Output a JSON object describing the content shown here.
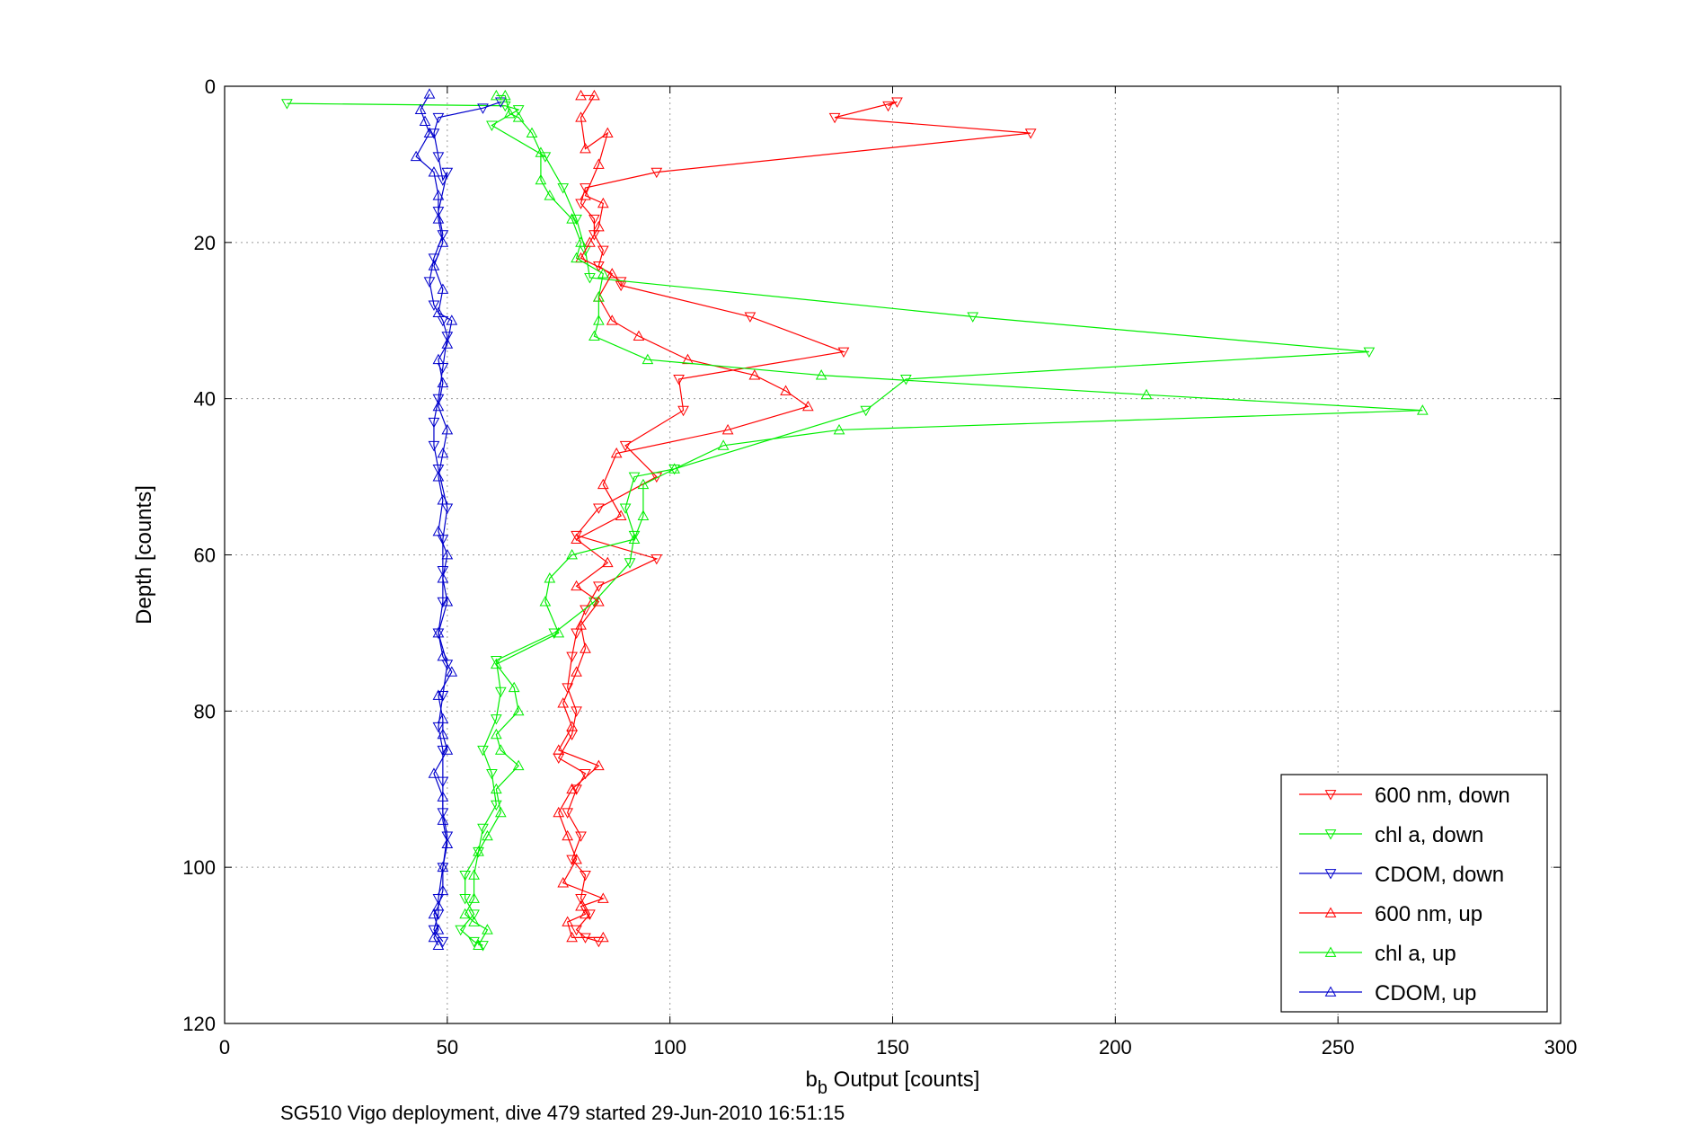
{
  "chart_data": {
    "type": "line",
    "title": "",
    "xlabel_main": "b",
    "xlabel_sub": "b",
    "xlabel_rest": " Output [counts]",
    "ylabel": "Depth [counts]",
    "caption": "SG510 Vigo deployment, dive 479 started 29-Jun-2010 16:51:15",
    "xlim": [
      0,
      300
    ],
    "ylim": [
      0,
      120
    ],
    "y_reversed": true,
    "grid": true,
    "legend_position": "bottom-right",
    "x_ticks": [
      "0",
      "50",
      "100",
      "150",
      "200",
      "250",
      "300"
    ],
    "y_ticks": [
      "0",
      "20",
      "40",
      "60",
      "80",
      "100",
      "120"
    ],
    "series": [
      {
        "name": "600 nm, down",
        "color": "#ff0000",
        "marker": "triangle-down",
        "points": [
          [
            149,
            2.5
          ],
          [
            151,
            2
          ],
          [
            137,
            4
          ],
          [
            181,
            6
          ],
          [
            97,
            11
          ],
          [
            81,
            13
          ],
          [
            80,
            15
          ],
          [
            83,
            17
          ],
          [
            83,
            19
          ],
          [
            85,
            21
          ],
          [
            84,
            23
          ],
          [
            89,
            25
          ],
          [
            89,
            25.5
          ],
          [
            118,
            29.5
          ],
          [
            139,
            34
          ],
          [
            102,
            37.5
          ],
          [
            103,
            41.5
          ],
          [
            90,
            46
          ],
          [
            97,
            50
          ],
          [
            84,
            54
          ],
          [
            79,
            57.5
          ],
          [
            97,
            60.5
          ],
          [
            84,
            64
          ],
          [
            81,
            67
          ],
          [
            79,
            70
          ],
          [
            78,
            73
          ],
          [
            77,
            77
          ],
          [
            79,
            80
          ],
          [
            78,
            83
          ],
          [
            75,
            86
          ],
          [
            81,
            88
          ],
          [
            79,
            90
          ],
          [
            77,
            93
          ],
          [
            80,
            96
          ],
          [
            78,
            99
          ],
          [
            81,
            101
          ],
          [
            80,
            104
          ],
          [
            82,
            106
          ],
          [
            79,
            108
          ],
          [
            81,
            109
          ],
          [
            84,
            109.5
          ]
        ]
      },
      {
        "name": "chl a, down",
        "color": "#00ee00",
        "marker": "triangle-down",
        "points": [
          [
            14,
            2.2
          ],
          [
            63,
            2.5
          ],
          [
            66,
            3
          ],
          [
            60,
            5
          ],
          [
            72,
            9
          ],
          [
            76,
            13
          ],
          [
            79,
            17
          ],
          [
            81,
            21
          ],
          [
            82,
            24.5
          ],
          [
            168,
            29.5
          ],
          [
            257,
            34
          ],
          [
            153,
            37.5
          ],
          [
            144,
            41.5
          ],
          [
            101,
            49
          ],
          [
            92,
            50
          ],
          [
            90,
            54
          ],
          [
            92,
            57.5
          ],
          [
            91,
            61
          ],
          [
            83,
            66
          ],
          [
            74,
            70
          ],
          [
            61,
            73.5
          ],
          [
            62,
            77.5
          ],
          [
            61,
            81
          ],
          [
            58,
            85
          ],
          [
            60,
            88
          ],
          [
            61,
            92
          ],
          [
            58,
            95
          ],
          [
            57,
            98
          ],
          [
            54,
            101
          ],
          [
            54,
            104
          ],
          [
            56,
            106
          ],
          [
            53,
            108
          ],
          [
            56,
            109.5
          ],
          [
            58,
            110
          ]
        ]
      },
      {
        "name": "CDOM, down",
        "color": "#0000cc",
        "marker": "triangle-down",
        "points": [
          [
            62,
            2
          ],
          [
            58,
            2.8
          ],
          [
            48,
            4
          ],
          [
            47,
            6
          ],
          [
            48,
            9
          ],
          [
            49,
            12
          ],
          [
            50,
            11
          ],
          [
            48,
            16
          ],
          [
            49,
            19
          ],
          [
            47,
            22
          ],
          [
            46,
            25
          ],
          [
            47,
            28
          ],
          [
            49,
            30
          ],
          [
            50,
            32
          ],
          [
            49,
            36
          ],
          [
            48,
            40
          ],
          [
            47,
            43
          ],
          [
            47,
            46
          ],
          [
            48,
            49
          ],
          [
            50,
            54
          ],
          [
            49,
            58
          ],
          [
            49,
            62
          ],
          [
            49,
            66
          ],
          [
            48,
            70
          ],
          [
            50,
            74
          ],
          [
            49,
            78
          ],
          [
            48,
            82
          ],
          [
            49,
            85
          ],
          [
            49,
            89
          ],
          [
            49,
            93
          ],
          [
            50,
            96
          ],
          [
            49,
            100
          ],
          [
            48,
            104
          ],
          [
            48,
            106
          ],
          [
            47,
            108
          ],
          [
            49,
            109.5
          ]
        ]
      },
      {
        "name": "600 nm, up",
        "color": "#ff0000",
        "marker": "triangle-up",
        "points": [
          [
            80,
            1.2
          ],
          [
            83,
            1.2
          ],
          [
            80,
            4
          ],
          [
            81,
            8
          ],
          [
            86,
            6
          ],
          [
            84,
            10
          ],
          [
            81,
            14
          ],
          [
            85,
            15
          ],
          [
            84,
            18
          ],
          [
            82,
            20
          ],
          [
            80,
            22
          ],
          [
            87,
            24
          ],
          [
            84,
            27
          ],
          [
            87,
            30
          ],
          [
            93,
            32
          ],
          [
            104,
            35
          ],
          [
            119,
            37
          ],
          [
            126,
            39
          ],
          [
            131,
            41
          ],
          [
            113,
            44
          ],
          [
            88,
            47
          ],
          [
            85,
            51
          ],
          [
            89,
            55
          ],
          [
            79,
            58
          ],
          [
            86,
            61
          ],
          [
            79,
            64
          ],
          [
            84,
            66
          ],
          [
            80,
            69
          ],
          [
            81,
            72
          ],
          [
            79,
            75
          ],
          [
            76,
            79
          ],
          [
            78,
            82
          ],
          [
            75,
            85
          ],
          [
            84,
            87
          ],
          [
            78,
            90
          ],
          [
            75,
            93
          ],
          [
            77,
            96
          ],
          [
            79,
            99
          ],
          [
            76,
            102
          ],
          [
            85,
            104
          ],
          [
            80,
            105
          ],
          [
            81,
            106
          ],
          [
            77,
            107
          ],
          [
            78,
            109
          ],
          [
            85,
            109
          ]
        ]
      },
      {
        "name": "chl a, up",
        "color": "#00ee00",
        "marker": "triangle-up",
        "points": [
          [
            61,
            1.2
          ],
          [
            63,
            1.2
          ],
          [
            64,
            3.5
          ],
          [
            66,
            4
          ],
          [
            69,
            6
          ],
          [
            71,
            8.5
          ],
          [
            71,
            12
          ],
          [
            73,
            14
          ],
          [
            78,
            17
          ],
          [
            80,
            20
          ],
          [
            79,
            22
          ],
          [
            85,
            24
          ],
          [
            84,
            27
          ],
          [
            84,
            30
          ],
          [
            83,
            32
          ],
          [
            95,
            35
          ],
          [
            134,
            37
          ],
          [
            207,
            39.5
          ],
          [
            269,
            41.5
          ],
          [
            138,
            44
          ],
          [
            112,
            46
          ],
          [
            101,
            49
          ],
          [
            94,
            51
          ],
          [
            94,
            55
          ],
          [
            92,
            58
          ],
          [
            78,
            60
          ],
          [
            73,
            63
          ],
          [
            72,
            66
          ],
          [
            75,
            70
          ],
          [
            61,
            74
          ],
          [
            65,
            77
          ],
          [
            66,
            80
          ],
          [
            61,
            83
          ],
          [
            62,
            85
          ],
          [
            66,
            87
          ],
          [
            61,
            90
          ],
          [
            62,
            93
          ],
          [
            59,
            96
          ],
          [
            57,
            98
          ],
          [
            56,
            101
          ],
          [
            56,
            104
          ],
          [
            54,
            106
          ],
          [
            56,
            107
          ],
          [
            59,
            108
          ],
          [
            57,
            110
          ]
        ]
      },
      {
        "name": "CDOM, up",
        "color": "#0000cc",
        "marker": "triangle-up",
        "points": [
          [
            46,
            1
          ],
          [
            44,
            3
          ],
          [
            45,
            4.5
          ],
          [
            46,
            6
          ],
          [
            43,
            9
          ],
          [
            47,
            11
          ],
          [
            48,
            14
          ],
          [
            48,
            17
          ],
          [
            49,
            20
          ],
          [
            47,
            23
          ],
          [
            49,
            26
          ],
          [
            48,
            29
          ],
          [
            51,
            30
          ],
          [
            50,
            33
          ],
          [
            48,
            35
          ],
          [
            49,
            38
          ],
          [
            48,
            41
          ],
          [
            50,
            44
          ],
          [
            49,
            47
          ],
          [
            48,
            50
          ],
          [
            49,
            53
          ],
          [
            48,
            57
          ],
          [
            50,
            60
          ],
          [
            49,
            63
          ],
          [
            50,
            66
          ],
          [
            48,
            70
          ],
          [
            49,
            73
          ],
          [
            51,
            75
          ],
          [
            48,
            78
          ],
          [
            49,
            81
          ],
          [
            49,
            83
          ],
          [
            50,
            85
          ],
          [
            47,
            88
          ],
          [
            49,
            91
          ],
          [
            49,
            94
          ],
          [
            50,
            97
          ],
          [
            49,
            100
          ],
          [
            49,
            103
          ],
          [
            48,
            105
          ],
          [
            47,
            106
          ],
          [
            48,
            108
          ],
          [
            47,
            109
          ],
          [
            48,
            110
          ]
        ]
      }
    ]
  }
}
